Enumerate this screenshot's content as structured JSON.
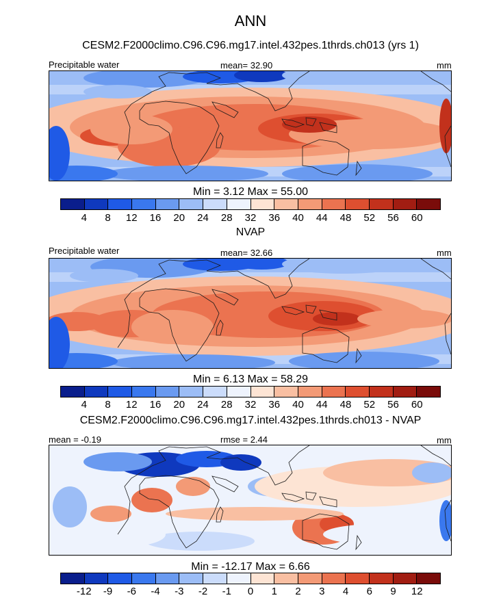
{
  "title": "ANN",
  "colors_pw": [
    "#0a1e8c",
    "#0f39be",
    "#1f5ae6",
    "#3a78ee",
    "#6a9af0",
    "#9cbdf6",
    "#cbdcfb",
    "#eef3fd",
    "#fde4d4",
    "#f9bfa2",
    "#f39a76",
    "#eb7350",
    "#de4f30",
    "#c2311c",
    "#a11d12",
    "#7a0c0a"
  ],
  "colors_diff": [
    "#0a1e8c",
    "#0f39be",
    "#1f5ae6",
    "#3a78ee",
    "#6a9af0",
    "#9cbdf6",
    "#cbdcfb",
    "#eef3fd",
    "#fde4d4",
    "#f9bfa2",
    "#f39a76",
    "#eb7350",
    "#de4f30",
    "#c2311c",
    "#a11d12",
    "#7a0c0a"
  ],
  "panels": [
    {
      "title": "CESM2.F2000climo.C96.C96.mg17.intel.432pes.1thrds.ch013 (yrs 1)",
      "left_label": "Precipitable water",
      "center_label": "mean=  32.90",
      "units": "mm",
      "stats": "Min =    3.12 Max =  55.00",
      "colorbar_ticks": [
        "4",
        "8",
        "12",
        "16",
        "20",
        "24",
        "28",
        "32",
        "36",
        "40",
        "44",
        "48",
        "52",
        "56",
        "60"
      ]
    },
    {
      "title": "NVAP",
      "left_label": "Precipitable water",
      "center_label": "mean=  32.66",
      "units": "mm",
      "stats": "Min =    6.13 Max =  58.29",
      "colorbar_ticks": [
        "4",
        "8",
        "12",
        "16",
        "20",
        "24",
        "28",
        "32",
        "36",
        "40",
        "44",
        "48",
        "52",
        "56",
        "60"
      ]
    },
    {
      "title": "CESM2.F2000climo.C96.C96.mg17.intel.432pes.1thrds.ch013 - NVAP",
      "left_label": "mean =  -0.19",
      "center_label": "rmse =    2.44",
      "units": "mm",
      "stats": "Min = -12.17 Max =    6.66",
      "colorbar_ticks": [
        "-12",
        "-9",
        "-6",
        "-4",
        "-3",
        "-2",
        "-1",
        "0",
        "1",
        "2",
        "3",
        "4",
        "6",
        "9",
        "12"
      ]
    }
  ],
  "chart_data": [
    {
      "type": "heatmap",
      "title": "CESM2.F2000climo.C96.C96.mg17.intel.432pes.1thrds.ch013 (yrs 1)",
      "variable": "Precipitable water",
      "units": "mm",
      "mean": 32.9,
      "min": 3.12,
      "max": 55.0,
      "levels": [
        4,
        8,
        12,
        16,
        20,
        24,
        28,
        32,
        36,
        40,
        44,
        48,
        52,
        56,
        60
      ]
    },
    {
      "type": "heatmap",
      "title": "NVAP",
      "variable": "Precipitable water",
      "units": "mm",
      "mean": 32.66,
      "min": 6.13,
      "max": 58.29,
      "levels": [
        4,
        8,
        12,
        16,
        20,
        24,
        28,
        32,
        36,
        40,
        44,
        48,
        52,
        56,
        60
      ]
    },
    {
      "type": "heatmap",
      "title": "CESM2.F2000climo.C96.C96.mg17.intel.432pes.1thrds.ch013 - NVAP",
      "units": "mm",
      "mean": -0.19,
      "rmse": 2.44,
      "min": -12.17,
      "max": 6.66,
      "levels": [
        -12,
        -9,
        -6,
        -4,
        -3,
        -2,
        -1,
        0,
        1,
        2,
        3,
        4,
        6,
        9,
        12
      ]
    }
  ]
}
